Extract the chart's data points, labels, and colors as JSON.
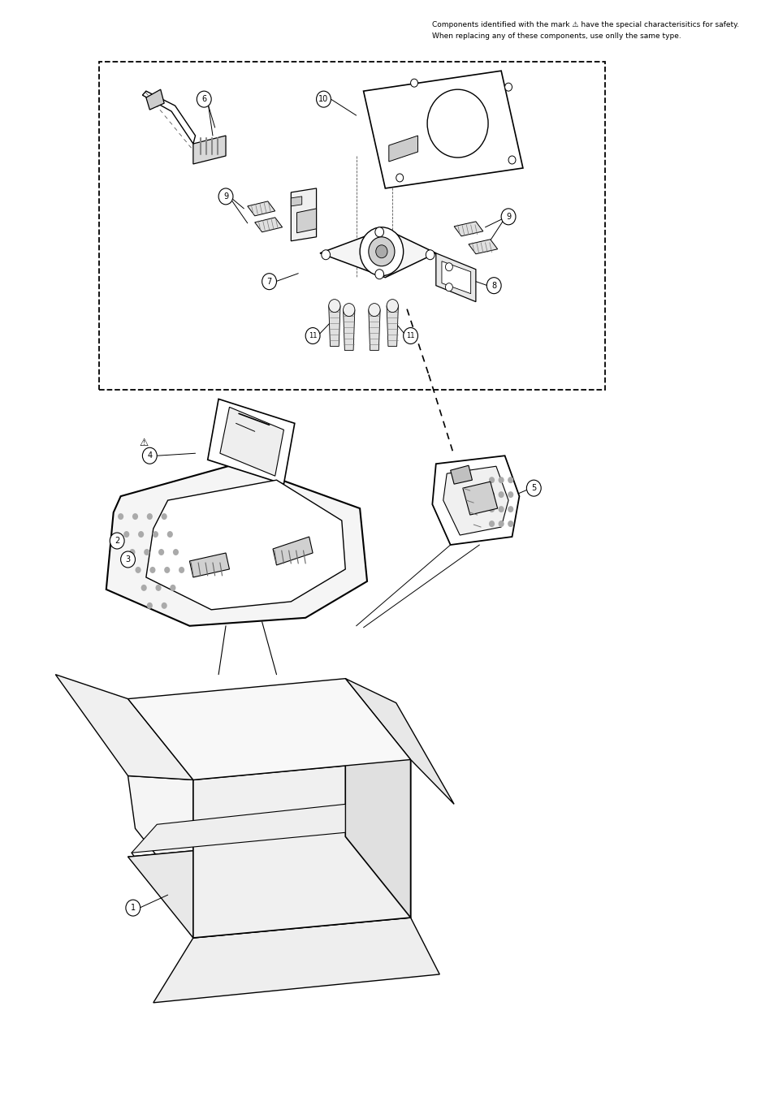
{
  "bg_color": "#ffffff",
  "line_color": "#000000",
  "text_color": "#000000",
  "header_text_line1": "Components identified with the mark ⚠ have the special characterisitics for safety.",
  "header_text_line2": "When replacing any of these components, use onlly the same type.",
  "fig_width": 9.54,
  "fig_height": 13.51
}
